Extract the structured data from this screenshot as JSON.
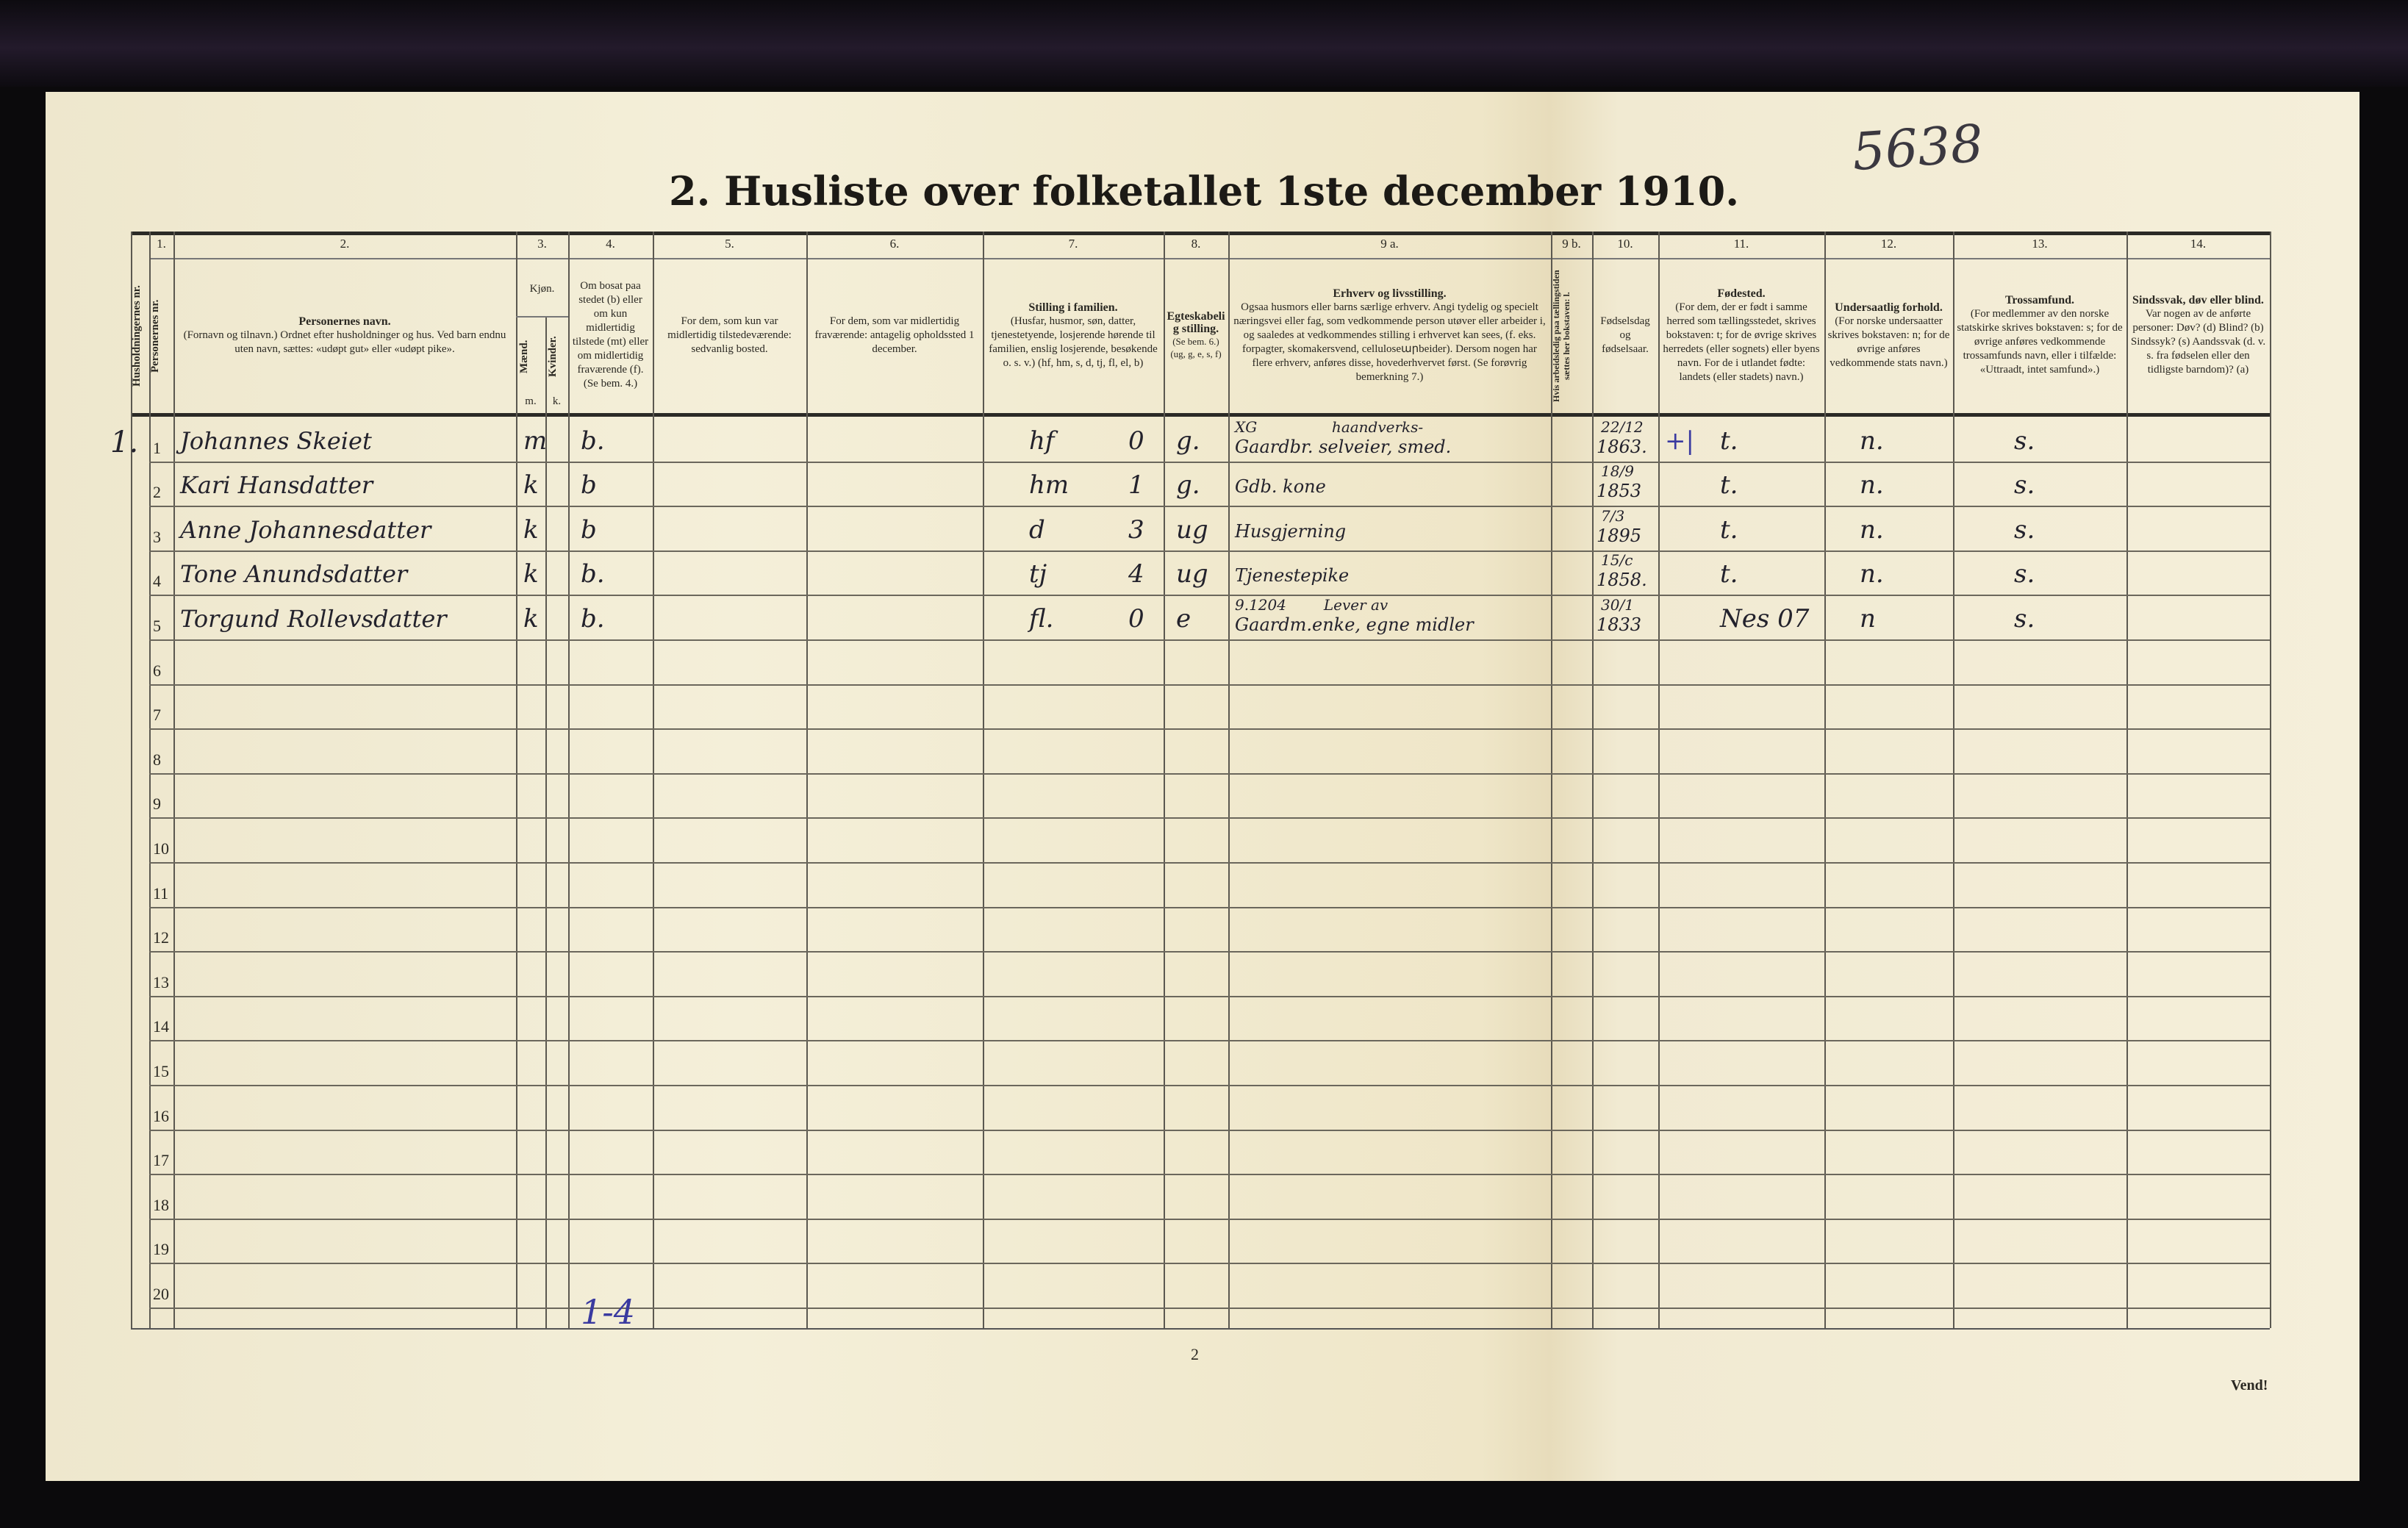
{
  "page": {
    "title": "2.  Husliste over folketallet 1ste december 1910.",
    "archive_number": "5638",
    "page_number": "2",
    "vend": "Vend!",
    "margin_note": "1-4"
  },
  "columns": [
    {
      "num": "",
      "vertical": "Husholdningernes nr."
    },
    {
      "num": "1.",
      "vertical": "Personernes nr."
    },
    {
      "num": "2.",
      "title": "Personernes navn.",
      "text": "(Fornavn og tilnavn.) Ordnet efter husholdninger og hus. Ved barn endnu uten navn, sættes: «udøpt gut» eller «udøpt pike»."
    },
    {
      "num": "3.",
      "title": "Kjøn.",
      "sub_m": "Mænd.",
      "sub_k": "Kvinder.",
      "m": "m.",
      "k": "k."
    },
    {
      "num": "4.",
      "text": "Om bosat paa stedet (b) eller om kun midlertidig tilstede (mt) eller om midlertidig fraværende (f). (Se bem. 4.)"
    },
    {
      "num": "5.",
      "text": "For dem, som kun var midlertidig tilstedeværende: sedvanlig bosted."
    },
    {
      "num": "6.",
      "text": "For dem, som var midlertidig fraværende: antagelig opholdssted 1 december."
    },
    {
      "num": "7.",
      "title": "Stilling i familien.",
      "text": "(Husfar, husmor, søn, datter, tjenestetyende, losjerende hørende til familien, enslig losjerende, besøkende o. s. v.) (hf, hm, s, d, tj, fl, el, b)"
    },
    {
      "num": "8.",
      "title": "Egteskabelig stilling.",
      "text": "(Se bem. 6.) (ug, g, e, s, f)"
    },
    {
      "num": "9 a.",
      "title": "Erhverv og livsstilling.",
      "text": "Ogsaa husmors eller barns særlige erhverv. Angi tydelig og specielt næringsvei eller fag, som vedkommende person utøver eller arbeider i, og saaledes at vedkommendes stilling i erhvervet kan sees, (f. eks. forpagter, skomakersvend, celluloseարbeider). Dersom nogen har flere erhverv, anføres disse, hovederhvervet først. (Se forøvrig bemerkning 7.)"
    },
    {
      "num": "9 b.",
      "vertical": "Hvis arbeidsledig paa tællingstiden sættes her bokstaven: l."
    },
    {
      "num": "10.",
      "text": "Fødselsdag og fødselsaar."
    },
    {
      "num": "11.",
      "title": "Fødested.",
      "text": "(For dem, der er født i samme herred som tællingsstedet, skrives bokstaven: t; for de øvrige skrives herredets (eller sognets) eller byens navn. For de i utlandet fødte: landets (eller stadets) navn.)"
    },
    {
      "num": "12.",
      "title": "Undersaatlig forhold.",
      "text": "(For norske undersaatter skrives bokstaven: n; for de øvrige anføres vedkommende stats navn.)"
    },
    {
      "num": "13.",
      "title": "Trossamfund.",
      "text": "(For medlemmer av den norske statskirke skrives bokstaven: s; for de øvrige anføres vedkommende trossamfunds navn, eller i tilfælde: «Uttraadt, intet samfund».)"
    },
    {
      "num": "14.",
      "title": "Sindssvak, døv eller blind.",
      "text": "Var nogen av de anførte personer: Døv? (d) Blind? (b) Sindssyk? (s) Aandssvak (d. v. s. fra fødselen eller den tidligste barndom)? (a)"
    }
  ],
  "row_numbers": [
    "1",
    "2",
    "3",
    "4",
    "5",
    "6",
    "7",
    "8",
    "9",
    "10",
    "11",
    "12",
    "13",
    "14",
    "15",
    "16",
    "17",
    "18",
    "19",
    "20"
  ],
  "rows": [
    {
      "hh": "1.",
      "name": "Johannes Skeiet",
      "sex": "m",
      "bosat": "b.",
      "stilling": "hf",
      "code": "0",
      "egteskab": "g.",
      "erhverv_note": "XG                haandverks-",
      "erhverv": "Gaardbr. selveier, smed.",
      "dag": "22/12",
      "aar": "1863.",
      "mark": "+|",
      "fodested": "t.",
      "undersaatlig": "n.",
      "tros": "s."
    },
    {
      "hh": "",
      "name": "Kari Hansdatter",
      "sex": "k",
      "bosat": "b",
      "stilling": "hm",
      "code": "1",
      "egteskab": "g.",
      "erhverv_note": "",
      "erhverv": "Gdb. kone",
      "dag": "18/9",
      "aar": "1853",
      "mark": "",
      "fodested": "t.",
      "undersaatlig": "n.",
      "tros": "s."
    },
    {
      "hh": "",
      "name": "Anne Johannesdatter",
      "sex": "k",
      "bosat": "b",
      "stilling": "d",
      "code": "3",
      "egteskab": "ug",
      "erhverv_note": "",
      "erhverv": "Husgjerning",
      "dag": "7/3",
      "aar": "1895",
      "mark": "",
      "fodested": "t.",
      "undersaatlig": "n.",
      "tros": "s."
    },
    {
      "hh": "",
      "name": "Tone Anundsdatter",
      "sex": "k",
      "bosat": "b.",
      "stilling": "tj",
      "code": "4",
      "egteskab": "ug",
      "erhverv_note": "",
      "erhverv": "Tjenestepike",
      "dag": "15/c",
      "aar": "1858.",
      "mark": "",
      "fodested": "t.",
      "undersaatlig": "n.",
      "tros": "s."
    },
    {
      "hh": "",
      "name": "Torgund Rollevsdatter",
      "sex": "k",
      "bosat": "b.",
      "stilling": "fl.",
      "code": "0",
      "egteskab": "e",
      "erhverv_note": "9.1204        Lever av",
      "erhverv": "Gaardm.enke, egne midler",
      "dag": "30/1",
      "aar": "1833",
      "mark": "",
      "fodested": "Nes 07",
      "undersaatlig": "n",
      "tros": "s."
    }
  ]
}
